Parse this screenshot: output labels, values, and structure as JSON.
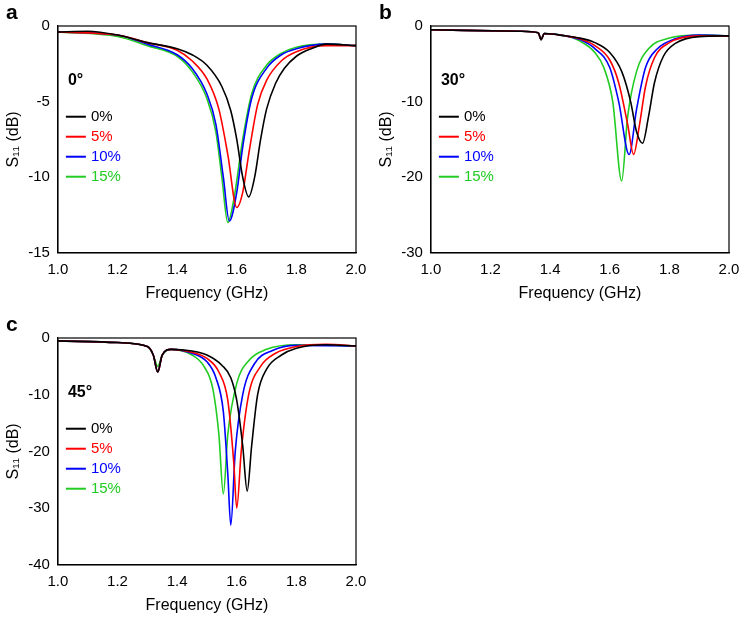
{
  "chart_data": [
    {
      "type": "line",
      "title": "a",
      "annotation": "0°",
      "x_label": "Frequency (GHz)",
      "y_label": "S₁₁ (dB)",
      "xlim": [
        1.0,
        2.0
      ],
      "xticks": [
        {
          "value": 1.0,
          "label": "1.0"
        },
        1.2,
        1.4,
        1.6,
        1.8,
        {
          "value": 2.0,
          "label": "2.0"
        }
      ],
      "ylim": [
        -15,
        0
      ],
      "yticks": [
        -15,
        -10,
        -5,
        0
      ],
      "grid": false,
      "legend": "left",
      "series": [
        {
          "name": "0%",
          "color": "#000000",
          "x": [
            1.0,
            1.1,
            1.2,
            1.3,
            1.4,
            1.45,
            1.5,
            1.55,
            1.58,
            1.6,
            1.62,
            1.64,
            1.66,
            1.68,
            1.7,
            1.73,
            1.76,
            1.8,
            1.85,
            1.9,
            2.0
          ],
          "values": [
            -0.4,
            -0.35,
            -0.6,
            -1.1,
            -1.5,
            -1.9,
            -2.6,
            -4.0,
            -5.6,
            -7.5,
            -10,
            -11.3,
            -10,
            -7.5,
            -5.5,
            -3.8,
            -2.8,
            -2.0,
            -1.5,
            -1.2,
            -1.3
          ]
        },
        {
          "name": "5%",
          "color": "#ff0000",
          "x": [
            1.0,
            1.2,
            1.3,
            1.4,
            1.45,
            1.5,
            1.54,
            1.57,
            1.6,
            1.62,
            1.64,
            1.67,
            1.7,
            1.75,
            1.8,
            1.9,
            2.0
          ],
          "values": [
            -0.4,
            -0.6,
            -1.1,
            -1.6,
            -2.3,
            -3.5,
            -5.5,
            -8.5,
            -12.0,
            -11,
            -8.5,
            -5.2,
            -3.6,
            -2.3,
            -1.7,
            -1.3,
            -1.3
          ]
        },
        {
          "name": "10%",
          "color": "#0000ff",
          "x": [
            1.0,
            1.2,
            1.3,
            1.4,
            1.45,
            1.5,
            1.53,
            1.555,
            1.575,
            1.6,
            1.62,
            1.65,
            1.7,
            1.75,
            1.8,
            1.9,
            2.0
          ],
          "values": [
            -0.4,
            -0.6,
            -1.2,
            -1.9,
            -2.8,
            -4.5,
            -6.5,
            -10,
            -12.9,
            -11,
            -8,
            -4.8,
            -2.8,
            -1.9,
            -1.5,
            -1.2,
            -1.3
          ]
        },
        {
          "name": "15%",
          "color": "#22cc22",
          "x": [
            1.0,
            1.2,
            1.3,
            1.4,
            1.45,
            1.5,
            1.53,
            1.55,
            1.57,
            1.59,
            1.62,
            1.65,
            1.7,
            1.75,
            1.8,
            1.9,
            2.0
          ],
          "values": [
            -0.4,
            -0.7,
            -1.3,
            -2.0,
            -3.0,
            -4.8,
            -7,
            -10,
            -13,
            -11.5,
            -7.5,
            -4.5,
            -2.6,
            -1.8,
            -1.4,
            -1.2,
            -1.3
          ]
        }
      ]
    },
    {
      "type": "line",
      "title": "b",
      "annotation": "30°",
      "x_label": "Frequency (GHz)",
      "y_label": "S₁₁ (dB)",
      "xlim": [
        1.0,
        2.0
      ],
      "xticks": [
        {
          "value": 1.0,
          "label": "1.0"
        },
        1.2,
        1.4,
        1.6,
        1.8,
        {
          "value": 2.0,
          "label": "2.0"
        }
      ],
      "ylim": [
        -30,
        0
      ],
      "yticks": [
        -30,
        -20,
        -10,
        0
      ],
      "grid": false,
      "legend": "left",
      "series": [
        {
          "name": "0%",
          "color": "#000000",
          "x": [
            1.0,
            1.3,
            1.36,
            1.37,
            1.38,
            1.45,
            1.5,
            1.55,
            1.6,
            1.64,
            1.67,
            1.69,
            1.71,
            1.73,
            1.75,
            1.78,
            1.82,
            1.9,
            2.0
          ],
          "values": [
            -0.5,
            -0.7,
            -0.9,
            -1.8,
            -1.0,
            -1.3,
            -1.6,
            -2.2,
            -3.5,
            -6,
            -10,
            -14,
            -15.5,
            -12,
            -7.5,
            -4.0,
            -2.3,
            -1.4,
            -1.3
          ]
        },
        {
          "name": "5%",
          "color": "#ff0000",
          "x": [
            1.0,
            1.3,
            1.36,
            1.37,
            1.38,
            1.45,
            1.5,
            1.55,
            1.6,
            1.63,
            1.66,
            1.68,
            1.7,
            1.72,
            1.75,
            1.8,
            1.9,
            2.0
          ],
          "values": [
            -0.5,
            -0.7,
            -0.9,
            -1.8,
            -1.0,
            -1.3,
            -1.7,
            -2.6,
            -4.5,
            -7.5,
            -13,
            -17,
            -13,
            -8,
            -4.2,
            -2.2,
            -1.3,
            -1.3
          ]
        },
        {
          "name": "10%",
          "color": "#0000ff",
          "x": [
            1.0,
            1.3,
            1.36,
            1.37,
            1.38,
            1.45,
            1.5,
            1.55,
            1.6,
            1.63,
            1.665,
            1.69,
            1.72,
            1.76,
            1.82,
            1.9,
            2.0
          ],
          "values": [
            -0.5,
            -0.7,
            -0.9,
            -1.8,
            -1.0,
            -1.3,
            -1.8,
            -3,
            -5.5,
            -10,
            -17,
            -11,
            -5.5,
            -3,
            -1.7,
            -1.2,
            -1.3
          ]
        },
        {
          "name": "15%",
          "color": "#22cc22",
          "x": [
            1.0,
            1.3,
            1.36,
            1.37,
            1.38,
            1.45,
            1.5,
            1.55,
            1.58,
            1.61,
            1.64,
            1.66,
            1.69,
            1.73,
            1.8,
            1.9,
            2.0
          ],
          "values": [
            -0.5,
            -0.7,
            -0.9,
            -1.8,
            -1.0,
            -1.3,
            -2.0,
            -3.5,
            -5.5,
            -10,
            -20.5,
            -12,
            -6,
            -3,
            -1.6,
            -1.2,
            -1.3
          ]
        }
      ]
    },
    {
      "type": "line",
      "title": "c",
      "annotation": "45°",
      "x_label": "Frequency (GHz)",
      "y_label": "S₁₁ (dB)",
      "xlim": [
        1.0,
        2.0
      ],
      "xticks": [
        {
          "value": 1.0,
          "label": "1.0"
        },
        1.2,
        1.4,
        1.6,
        1.8,
        {
          "value": 2.0,
          "label": "2.0"
        }
      ],
      "ylim": [
        -40,
        0
      ],
      "yticks": [
        -40,
        -30,
        -20,
        -10,
        0
      ],
      "grid": false,
      "legend": "left",
      "series": [
        {
          "name": "0%",
          "color": "#000000",
          "x": [
            1.0,
            1.2,
            1.3,
            1.32,
            1.335,
            1.35,
            1.38,
            1.45,
            1.5,
            1.55,
            1.58,
            1.6,
            1.62,
            1.635,
            1.65,
            1.67,
            1.7,
            1.75,
            1.8,
            1.9,
            2.0
          ],
          "values": [
            -0.5,
            -0.8,
            -1.5,
            -3,
            -6,
            -3,
            -2,
            -2.3,
            -3,
            -4.8,
            -7,
            -11,
            -19,
            -27,
            -19,
            -10,
            -5.5,
            -3,
            -1.8,
            -1.2,
            -1.4
          ]
        },
        {
          "name": "5%",
          "color": "#ff0000",
          "x": [
            1.0,
            1.2,
            1.3,
            1.32,
            1.335,
            1.35,
            1.38,
            1.45,
            1.5,
            1.54,
            1.57,
            1.59,
            1.6,
            1.615,
            1.64,
            1.68,
            1.73,
            1.8,
            1.9,
            2.0
          ],
          "values": [
            -0.5,
            -0.8,
            -1.5,
            -3,
            -6,
            -3,
            -2,
            -2.5,
            -3.6,
            -6,
            -11,
            -22,
            -30,
            -20,
            -10,
            -5,
            -2.7,
            -1.5,
            -1.1,
            -1.4
          ]
        },
        {
          "name": "10%",
          "color": "#0000ff",
          "x": [
            1.0,
            1.2,
            1.3,
            1.32,
            1.335,
            1.35,
            1.38,
            1.45,
            1.5,
            1.53,
            1.555,
            1.57,
            1.58,
            1.595,
            1.62,
            1.66,
            1.72,
            1.8,
            2.0
          ],
          "values": [
            -0.5,
            -0.8,
            -1.5,
            -3,
            -6,
            -3,
            -2,
            -2.7,
            -4.2,
            -7,
            -13,
            -24,
            -33,
            -20,
            -10,
            -4.5,
            -2.2,
            -1.3,
            -1.4
          ]
        },
        {
          "name": "15%",
          "color": "#22cc22",
          "x": [
            1.0,
            1.2,
            1.3,
            1.32,
            1.335,
            1.35,
            1.38,
            1.45,
            1.49,
            1.52,
            1.54,
            1.555,
            1.57,
            1.6,
            1.64,
            1.7,
            1.8,
            2.0
          ],
          "values": [
            -0.5,
            -0.8,
            -1.5,
            -3,
            -5,
            -3,
            -2,
            -3,
            -5,
            -9,
            -17,
            -27.5,
            -17,
            -8,
            -4,
            -2,
            -1.2,
            -1.4
          ]
        }
      ]
    }
  ]
}
